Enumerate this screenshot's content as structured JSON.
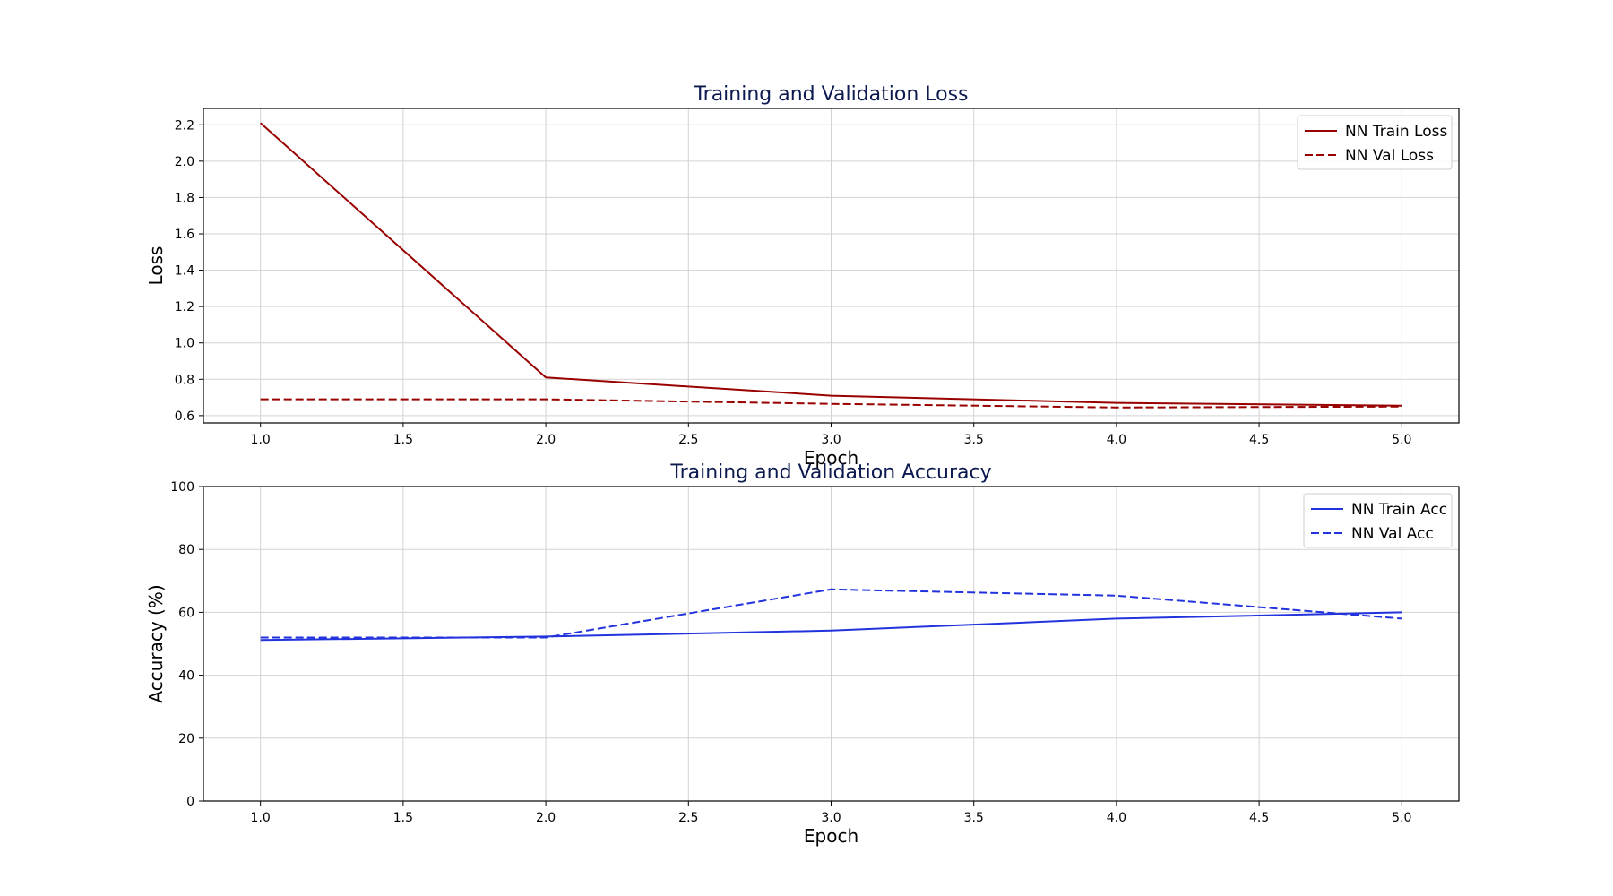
{
  "chart_data": [
    {
      "type": "line",
      "title": "Training and Validation Loss",
      "xlabel": "Epoch",
      "ylabel": "Loss",
      "xlim": [
        0.8,
        5.2
      ],
      "ylim": [
        0.56,
        2.29
      ],
      "xticks": [
        "1.0",
        "1.5",
        "2.0",
        "2.5",
        "3.0",
        "3.5",
        "4.0",
        "4.5",
        "5.0"
      ],
      "yticks": [
        "0.6",
        "0.8",
        "1.0",
        "1.2",
        "1.4",
        "1.6",
        "1.8",
        "2.0",
        "2.2"
      ],
      "grid": true,
      "legend": "top-right",
      "x": [
        1,
        2,
        3,
        4,
        5
      ],
      "series": [
        {
          "name": "NN Train Loss",
          "values": [
            2.21,
            0.81,
            0.71,
            0.67,
            0.655
          ],
          "color": "#990000",
          "dash": "solid"
        },
        {
          "name": "NN Val Loss",
          "values": [
            0.69,
            0.69,
            0.665,
            0.645,
            0.65
          ],
          "color": "#990000",
          "dash": "dashed"
        }
      ]
    },
    {
      "type": "line",
      "title": "Training and Validation Accuracy",
      "xlabel": "Epoch",
      "ylabel": "Accuracy (%)",
      "xlim": [
        0.8,
        5.2
      ],
      "ylim": [
        0,
        100
      ],
      "xticks": [
        "1.0",
        "1.5",
        "2.0",
        "2.5",
        "3.0",
        "3.5",
        "4.0",
        "4.5",
        "5.0"
      ],
      "yticks": [
        "0",
        "20",
        "40",
        "60",
        "80",
        "100"
      ],
      "grid": true,
      "legend": "top-right",
      "x": [
        1,
        2,
        3,
        4,
        5
      ],
      "series": [
        {
          "name": "NN Train Acc",
          "values": [
            51.2,
            52.3,
            54.2,
            58.0,
            60.0
          ],
          "color": "#2233dd",
          "dash": "solid"
        },
        {
          "name": "NN Val Acc",
          "values": [
            52.0,
            52.0,
            67.3,
            65.3,
            58.0
          ],
          "color": "#2233dd",
          "dash": "dashed"
        }
      ]
    }
  ]
}
